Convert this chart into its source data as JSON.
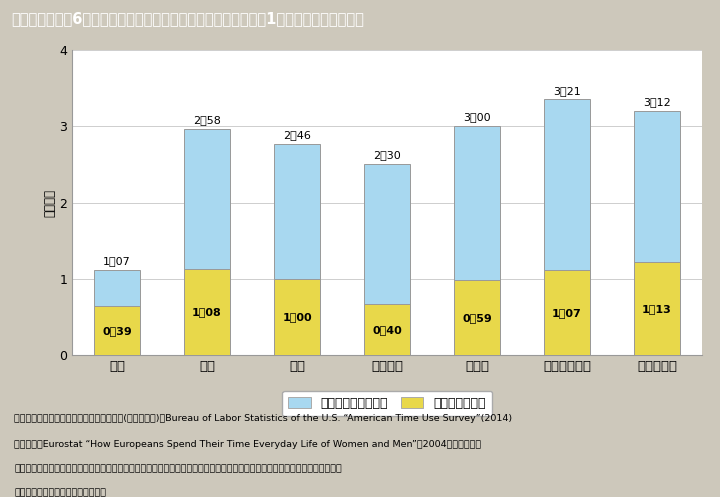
{
  "categories": [
    "日本",
    "米国",
    "英国",
    "フランス",
    "ドイツ",
    "スウェーデン",
    "ノルウェー"
  ],
  "total_decimal": [
    1.1167,
    2.9667,
    2.7667,
    2.5,
    3.0,
    3.35,
    3.2
  ],
  "child_decimal": [
    0.65,
    1.1333,
    1.0,
    0.6667,
    0.9833,
    1.1167,
    1.2167
  ],
  "total_labels": [
    "1：07",
    "2：58",
    "2：46",
    "2：30",
    "3：00",
    "3：21",
    "3：12"
  ],
  "child_labels": [
    "0：39",
    "1：08",
    "1：00",
    "0：40",
    "0：59",
    "1：07",
    "1：13"
  ],
  "bar_color_blue": "#a8d8f0",
  "bar_color_yellow": "#e8d84a",
  "bar_edge_color": "#999999",
  "ylim": [
    0,
    4
  ],
  "yticks": [
    0,
    1,
    2,
    3,
    4
  ],
  "ylabel": "（時間）",
  "title": "イ－特－７図　6歳未満の子供を持つ夕の家事・育児関連時間（1日当たり，国際比較）",
  "legend_blue": "家事・育児関連時間",
  "legend_yellow": "うち育児の時間",
  "note1": "（備考）１．総務省「社会生活基本調査」(平成２３年)，Bureau of Labor Statistics of the U.S. “American Time Use Survey”(2014)",
  "note1b": "　　　及びEurostat “How Europeans Spend Their Time Everyday Life of Women and Men”（2004）より作成。",
  "note2": "　　２．日本の値は，「夫婦と子供の世帯」に限定した夕の１日当たりの「家事」，「介護・看護」，「育児」及び「買い物」",
  "note2b": "　　　の合計時間（週全体平均）。",
  "bg_color": "#cdc8bb",
  "plot_bg_color": "#ffffff",
  "title_bg_color": "#3aafcb"
}
